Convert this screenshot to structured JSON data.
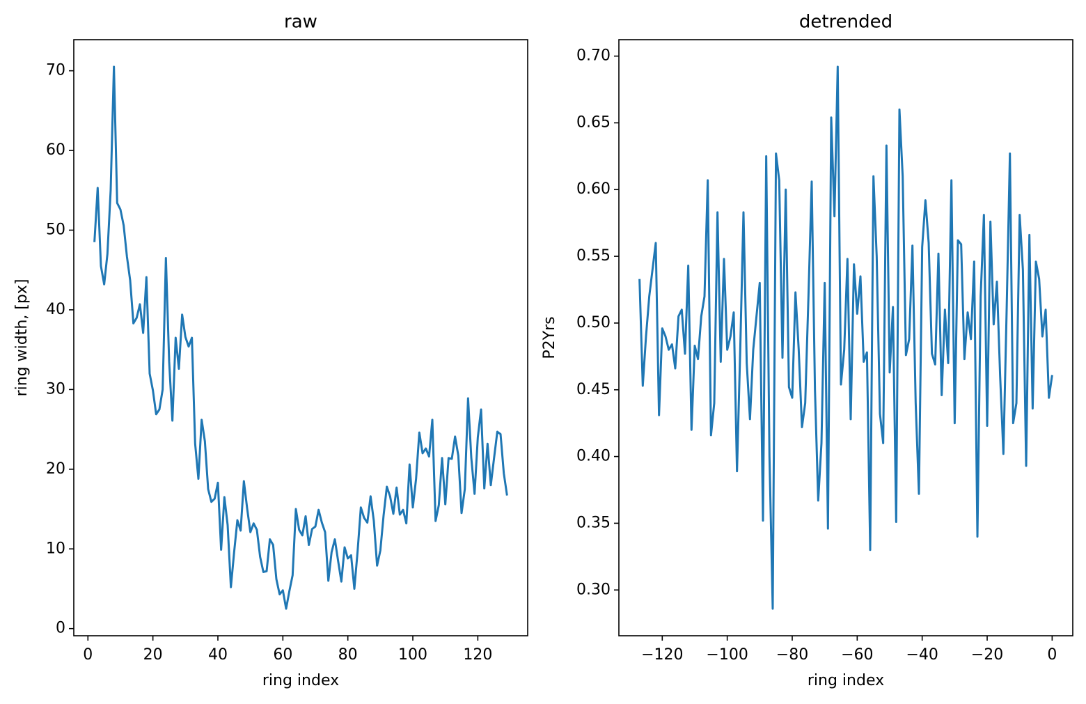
{
  "chart_data": [
    {
      "type": "line",
      "title": "raw",
      "xlabel": "ring index",
      "ylabel": "ring width, [px]",
      "color": "#1f77b4",
      "x": [
        2,
        3,
        4,
        5,
        6,
        7,
        8,
        9,
        10,
        11,
        12,
        13,
        14,
        15,
        16,
        17,
        18,
        19,
        20,
        21,
        22,
        23,
        24,
        25,
        26,
        27,
        28,
        29,
        30,
        31,
        32,
        33,
        34,
        35,
        36,
        37,
        38,
        39,
        40,
        41,
        42,
        43,
        44,
        45,
        46,
        47,
        48,
        49,
        50,
        51,
        52,
        53,
        54,
        55,
        56,
        57,
        58,
        59,
        60,
        61,
        62,
        63,
        64,
        65,
        66,
        67,
        68,
        69,
        70,
        71,
        72,
        73,
        74,
        75,
        76,
        77,
        78,
        79,
        80,
        81,
        82,
        83,
        84,
        85,
        86,
        87,
        88,
        89,
        90,
        91,
        92,
        93,
        94,
        95,
        96,
        97,
        98,
        99,
        100,
        101,
        102,
        103,
        104,
        105,
        106,
        107,
        108,
        109,
        110,
        111,
        112,
        113,
        114,
        115,
        116,
        117,
        118,
        119,
        120,
        121,
        122,
        123,
        124,
        125,
        126,
        127,
        128,
        129
      ],
      "values": [
        48.5,
        55.3,
        45.5,
        43.2,
        47,
        55,
        70.5,
        53.4,
        52.6,
        50.6,
        46.7,
        43.7,
        38.3,
        39.0,
        40.7,
        37.1,
        44.1,
        32.0,
        29.9,
        26.9,
        27.5,
        30.0,
        46.5,
        33.5,
        26.1,
        36.5,
        32.6,
        39.4,
        36.6,
        35.4,
        36.5,
        23.2,
        18.8,
        26.2,
        23.5,
        17.5,
        15.9,
        16.3,
        18.3,
        9.9,
        16.5,
        13.0,
        5.2,
        9.6,
        13.6,
        12.3,
        18.5,
        15.1,
        12.1,
        13.2,
        12.4,
        9.0,
        7.1,
        7.2,
        11.2,
        10.5,
        6.2,
        4.3,
        4.8,
        2.5,
        4.7,
        6.7,
        15.0,
        12.4,
        11.7,
        14.1,
        10.5,
        12.5,
        12.8,
        14.9,
        13.3,
        12.1,
        6.0,
        9.6,
        11.2,
        8.5,
        5.9,
        10.2,
        8.8,
        9.2,
        5.0,
        9.7,
        15.2,
        13.9,
        13.3,
        16.6,
        13.5,
        7.9,
        9.8,
        14.2,
        17.8,
        16.6,
        14.4,
        17.7,
        14.3,
        14.9,
        13.2,
        20.6,
        15.2,
        18.8,
        24.6,
        22.0,
        22.6,
        21.6,
        26.2,
        13.5,
        15.5,
        21.4,
        15.6,
        21.4,
        21.3,
        24.1,
        21.7,
        14.5,
        17.5,
        28.9,
        21.4,
        16.9,
        24.0,
        27.5,
        17.6,
        23.2,
        18.0,
        21.4,
        24.7,
        24.4,
        19.5,
        16.7
      ],
      "xlim": [
        -4.35,
        135.35
      ],
      "ylim": [
        -0.9,
        73.9
      ],
      "xticks": [
        0,
        20,
        40,
        60,
        80,
        100,
        120
      ],
      "yticks": [
        0,
        10,
        20,
        30,
        40,
        50,
        60,
        70
      ]
    },
    {
      "type": "line",
      "title": "detrended",
      "xlabel": "ring index",
      "ylabel": "P2Yrs",
      "color": "#1f77b4",
      "x": [
        -127,
        -126,
        -125,
        -124,
        -123,
        -122,
        -121,
        -120,
        -119,
        -118,
        -117,
        -116,
        -115,
        -114,
        -113,
        -112,
        -111,
        -110,
        -109,
        -108,
        -107,
        -106,
        -105,
        -104,
        -103,
        -102,
        -101,
        -100,
        -99,
        -98,
        -97,
        -96,
        -95,
        -94,
        -93,
        -92,
        -91,
        -90,
        -89,
        -88,
        -87,
        -86,
        -85,
        -84,
        -83,
        -82,
        -81,
        -80,
        -79,
        -78,
        -77,
        -76,
        -75,
        -74,
        -73,
        -72,
        -71,
        -70,
        -69,
        -68,
        -67,
        -66,
        -65,
        -64,
        -63,
        -62,
        -61,
        -60,
        -59,
        -58,
        -57,
        -56,
        -55,
        -54,
        -53,
        -52,
        -51,
        -50,
        -49,
        -48,
        -47,
        -46,
        -45,
        -44,
        -43,
        -42,
        -41,
        -40,
        -39,
        -38,
        -37,
        -36,
        -35,
        -34,
        -33,
        -32,
        -31,
        -30,
        -29,
        -28,
        -27,
        -26,
        -25,
        -24,
        -23,
        -22,
        -21,
        -20,
        -19,
        -18,
        -17,
        -16,
        -15,
        -14,
        -13,
        -12,
        -11,
        -10,
        -9,
        -8,
        -7,
        -6,
        -5,
        -4,
        -3,
        -2,
        -1,
        0
      ],
      "values": [
        0.533,
        0.453,
        0.49,
        0.52,
        0.54,
        0.56,
        0.431,
        0.496,
        0.49,
        0.48,
        0.484,
        0.466,
        0.505,
        0.51,
        0.477,
        0.543,
        0.42,
        0.483,
        0.473,
        0.505,
        0.52,
        0.607,
        0.416,
        0.44,
        0.583,
        0.471,
        0.548,
        0.48,
        0.49,
        0.508,
        0.389,
        0.48,
        0.583,
        0.47,
        0.428,
        0.48,
        0.505,
        0.53,
        0.352,
        0.625,
        0.4,
        0.286,
        0.627,
        0.607,
        0.474,
        0.6,
        0.452,
        0.444,
        0.523,
        0.48,
        0.422,
        0.44,
        0.52,
        0.606,
        0.45,
        0.367,
        0.41,
        0.53,
        0.346,
        0.654,
        0.58,
        0.692,
        0.454,
        0.48,
        0.548,
        0.428,
        0.544,
        0.507,
        0.535,
        0.471,
        0.478,
        0.33,
        0.61,
        0.55,
        0.432,
        0.41,
        0.633,
        0.463,
        0.512,
        0.351,
        0.66,
        0.61,
        0.476,
        0.488,
        0.558,
        0.44,
        0.372,
        0.557,
        0.592,
        0.56,
        0.477,
        0.469,
        0.552,
        0.446,
        0.51,
        0.47,
        0.607,
        0.425,
        0.562,
        0.559,
        0.473,
        0.508,
        0.488,
        0.546,
        0.34,
        0.52,
        0.581,
        0.423,
        0.576,
        0.499,
        0.531,
        0.46,
        0.402,
        0.51,
        0.627,
        0.425,
        0.44,
        0.581,
        0.54,
        0.393,
        0.566,
        0.436,
        0.546,
        0.533,
        0.49,
        0.51,
        0.444,
        0.461
      ],
      "xlim": [
        -133.35,
        6.35
      ],
      "ylim": [
        0.2657,
        0.7123
      ],
      "xticks": [
        {
          "value": -120,
          "label": "−120"
        },
        {
          "value": -100,
          "label": "−100"
        },
        {
          "value": -80,
          "label": "−80"
        },
        {
          "value": -60,
          "label": "−60"
        },
        {
          "value": -40,
          "label": "−40"
        },
        {
          "value": -20,
          "label": "−20"
        },
        0
      ],
      "yticks": [
        {
          "value": 0.3,
          "label": "0.30"
        },
        0.35,
        {
          "value": 0.4,
          "label": "0.40"
        },
        0.45,
        {
          "value": 0.5,
          "label": "0.50"
        },
        0.55,
        {
          "value": 0.6,
          "label": "0.60"
        },
        0.65,
        {
          "value": 0.7,
          "label": "0.70"
        }
      ]
    }
  ]
}
